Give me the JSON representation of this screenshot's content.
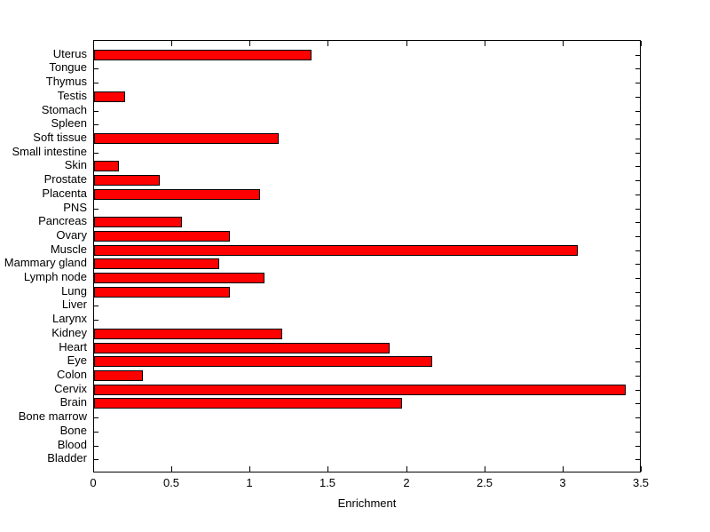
{
  "chart_data": {
    "type": "bar",
    "orientation": "horizontal",
    "title": "",
    "xlabel": "Enrichment",
    "ylabel": "",
    "xlim": [
      0,
      3.5
    ],
    "xticks": [
      0,
      0.5,
      1,
      1.5,
      2,
      2.5,
      3,
      3.5
    ],
    "xtick_labels": [
      "0",
      "0.5",
      "1",
      "1.5",
      "2",
      "2.5",
      "3",
      "3.5"
    ],
    "categories": [
      "Uterus",
      "Tongue",
      "Thymus",
      "Testis",
      "Stomach",
      "Spleen",
      "Soft tissue",
      "Small intestine",
      "Skin",
      "Prostate",
      "Placenta",
      "PNS",
      "Pancreas",
      "Ovary",
      "Muscle",
      "Mammary gland",
      "Lymph node",
      "Lung",
      "Liver",
      "Larynx",
      "Kidney",
      "Heart",
      "Eye",
      "Colon",
      "Cervix",
      "Brain",
      "Bone marrow",
      "Bone",
      "Blood",
      "Bladder"
    ],
    "values": [
      1.39,
      0,
      0,
      0.2,
      0,
      0,
      1.18,
      0,
      0.16,
      0.42,
      1.06,
      0,
      0.56,
      0.87,
      3.09,
      0.8,
      1.09,
      0.87,
      0,
      0,
      1.2,
      1.89,
      2.16,
      0.31,
      3.4,
      1.97,
      0,
      0,
      0,
      0
    ],
    "bar_color": "#ff0000",
    "bar_edge_color": "#000000",
    "axis_color": "#000000",
    "background_color": "#ffffff",
    "grid": false,
    "legend": null
  }
}
